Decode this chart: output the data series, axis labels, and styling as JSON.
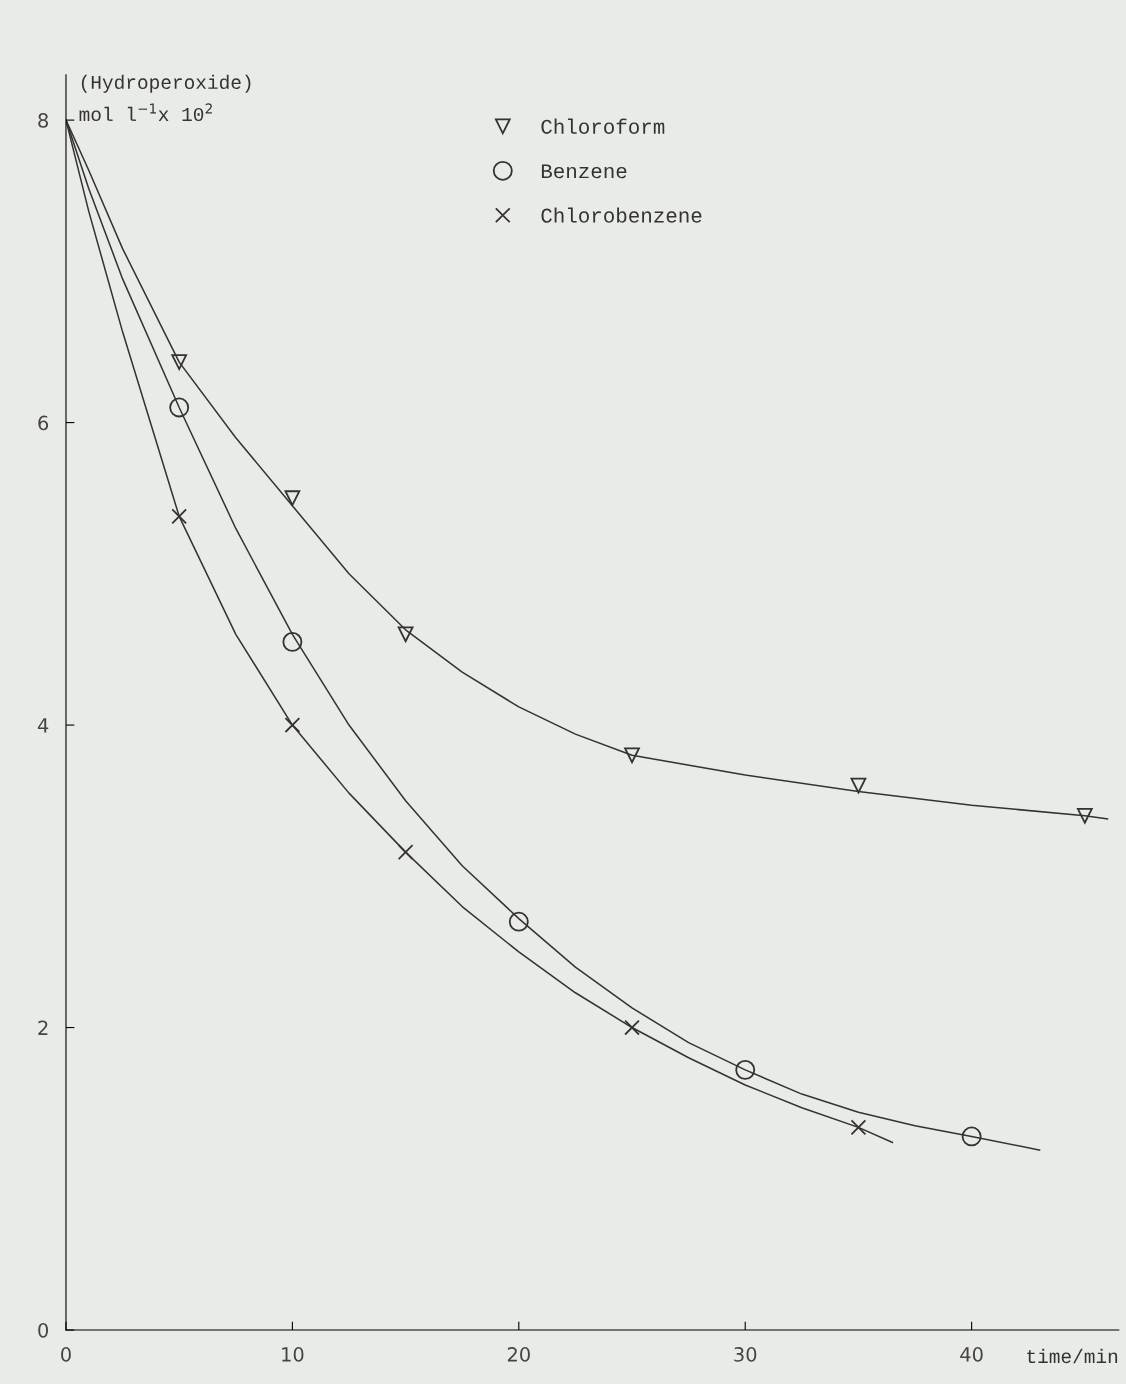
{
  "chart_data": {
    "type": "scatter",
    "xlabel": "time/min",
    "ylabel": "(Hydroperoxide)\nmol l$^{−1}$x 10$^{2}$",
    "xlim": [
      0,
      46.5
    ],
    "ylim": [
      0,
      8.3
    ],
    "xticks": [
      0,
      10,
      20,
      30,
      40
    ],
    "yticks": [
      0,
      2,
      4,
      6,
      8
    ],
    "legend": "top",
    "series": [
      {
        "name": "Chloroform",
        "color": "#333333",
        "marker": "triangle",
        "x": [
          5,
          10,
          15,
          25,
          35,
          45
        ],
        "values": [
          6.4,
          5.5,
          4.6,
          3.8,
          3.6,
          3.4
        ]
      },
      {
        "name": "Benzene",
        "color": "#333333",
        "marker": "circle",
        "x": [
          5,
          10,
          20,
          30,
          40
        ],
        "values": [
          6.1,
          4.55,
          2.7,
          1.72,
          1.28
        ]
      },
      {
        "name": "Chlorobenzene",
        "color": "#333333",
        "marker": "cross",
        "x": [
          5,
          10,
          15,
          25,
          35
        ],
        "values": [
          5.38,
          4.0,
          3.16,
          2.0,
          1.34
        ]
      },
      {
        "type": "line",
        "color": "#333333",
        "line_style": "solid",
        "x": [
          0,
          1,
          2.5,
          5,
          7.5,
          10,
          12.5,
          15,
          17.5,
          20,
          22.5,
          25,
          30,
          35,
          40,
          45,
          46
        ],
        "values": [
          8,
          7.67,
          7.15,
          6.4,
          5.9,
          5.45,
          5.0,
          4.63,
          4.35,
          4.12,
          3.94,
          3.8,
          3.67,
          3.56,
          3.47,
          3.4,
          3.38
        ]
      },
      {
        "type": "line",
        "color": "#333333",
        "line_style": "solid",
        "x": [
          0,
          1,
          2.5,
          5,
          7.5,
          10,
          12.5,
          15,
          17.5,
          20,
          22.5,
          25,
          27.5,
          30,
          32.5,
          35,
          37.5,
          40,
          43
        ],
        "values": [
          8,
          7.55,
          6.95,
          6.1,
          5.3,
          4.6,
          4.0,
          3.5,
          3.07,
          2.72,
          2.4,
          2.13,
          1.9,
          1.72,
          1.56,
          1.44,
          1.35,
          1.28,
          1.19
        ]
      },
      {
        "type": "line",
        "color": "#333333",
        "line_style": "solid",
        "x": [
          0,
          1,
          2.5,
          5,
          7.5,
          10,
          12.5,
          15,
          17.5,
          20,
          22.5,
          25,
          27.5,
          30,
          32.5,
          35,
          36.5
        ],
        "values": [
          8,
          7.4,
          6.6,
          5.38,
          4.6,
          4.0,
          3.55,
          3.16,
          2.8,
          2.5,
          2.23,
          2.0,
          1.8,
          1.62,
          1.47,
          1.34,
          1.24
        ]
      }
    ]
  }
}
